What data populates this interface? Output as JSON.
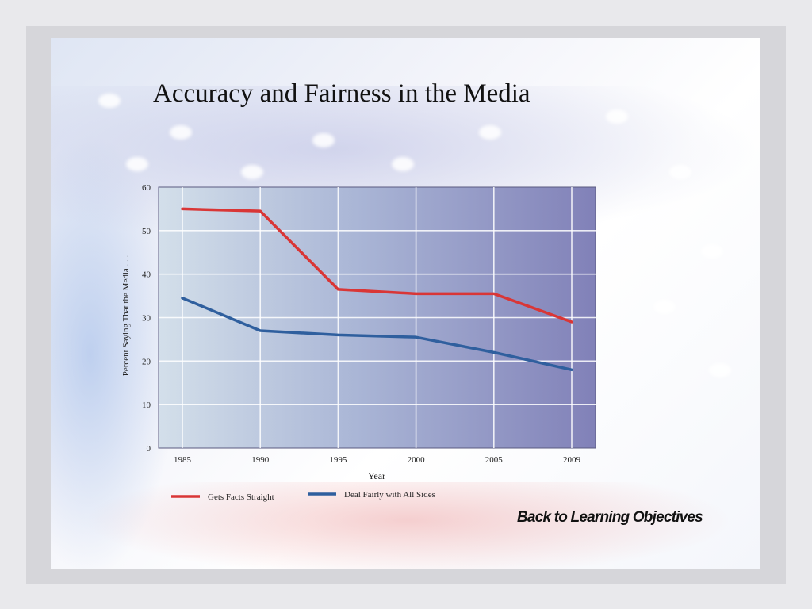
{
  "slide": {
    "title": "Accuracy and Fairness in the Media",
    "back_link": "Back to Learning Objectives"
  },
  "chart_data": {
    "type": "line",
    "title": "Accuracy and Fairness in the Media",
    "xlabel": "Year",
    "ylabel": "Percent Saying That the Media . . .",
    "categories": [
      "1985",
      "1990",
      "1995",
      "2000",
      "2005",
      "2009"
    ],
    "ylim": [
      0,
      60
    ],
    "yticks": [
      0,
      10,
      20,
      30,
      40,
      50,
      60
    ],
    "grid": true,
    "legend_position": "bottom",
    "series": [
      {
        "name": "Gets Facts Straight",
        "color": "#d93636",
        "values": [
          55,
          54.5,
          36.5,
          35.5,
          35.5,
          29
        ]
      },
      {
        "name": "Deal Fairly with All Sides",
        "color": "#2f5f9e",
        "values": [
          34.5,
          27,
          26,
          25.5,
          22,
          18
        ]
      }
    ]
  }
}
